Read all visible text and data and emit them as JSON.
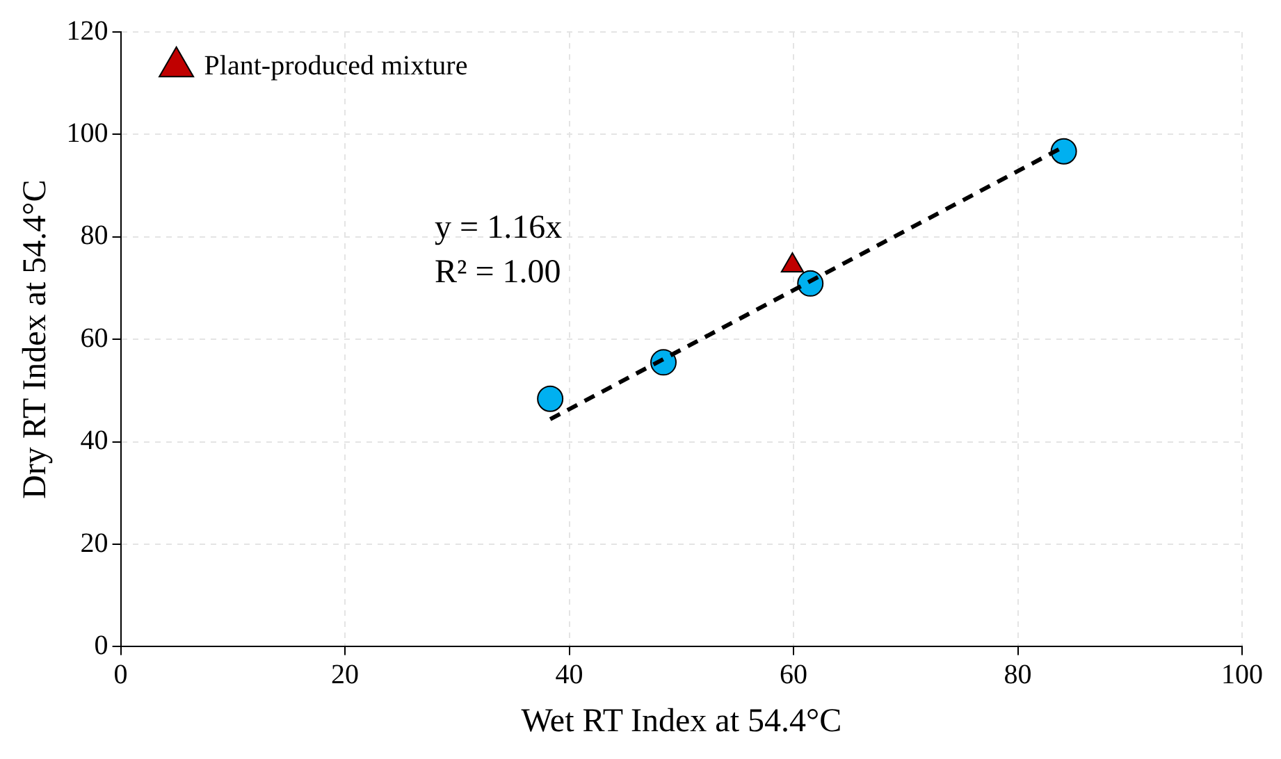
{
  "chart_data": {
    "type": "scatter",
    "xlabel": "Wet RT Index at 54.4°C",
    "ylabel": "Dry RT Index at 54.4°C",
    "xlim": [
      0,
      100
    ],
    "xticks": [
      0,
      20,
      40,
      60,
      80,
      100
    ],
    "ylim": [
      0,
      120
    ],
    "yticks": [
      0,
      20,
      40,
      60,
      80,
      100,
      120
    ],
    "grid": true,
    "legend": "top left",
    "series": [
      {
        "color": "#00b0f0",
        "marker": "circle",
        "x": [
          38.3,
          48.4,
          61.5,
          84.1
        ],
        "values": [
          48.4,
          55.5,
          70.9,
          96.7
        ]
      },
      {
        "name": "Plant-produced mixture",
        "color": "#c00000",
        "marker": "triangle",
        "x": [
          59.9
        ],
        "values": [
          74.4
        ]
      },
      {
        "type": "line",
        "color": "#000000",
        "marker": "none",
        "line_style": "dashed",
        "x": [
          38.3,
          84.1
        ],
        "values": [
          44.4,
          97.6
        ]
      }
    ],
    "annotations": [
      "y = 1.16x",
      "R² = 1.00"
    ]
  }
}
